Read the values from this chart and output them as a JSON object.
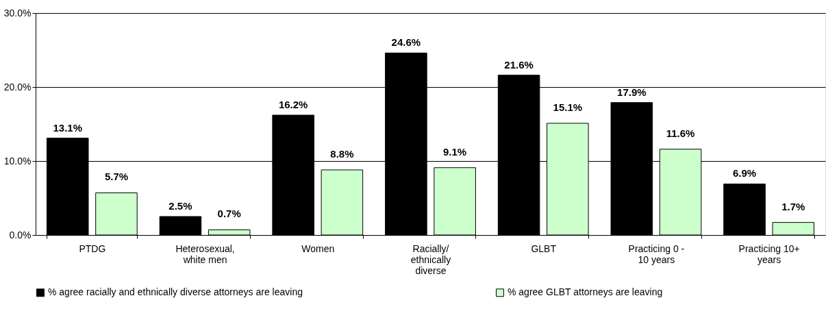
{
  "chart_data": {
    "type": "bar",
    "categories": [
      "PTDG",
      "Heterosexual, white men",
      "Women",
      "Racially/ ethnically diverse",
      "GLBT",
      "Practicing 0 - 10 years",
      "Practicing 10+ years"
    ],
    "series": [
      {
        "name": "% agree racially and ethnically diverse attorneys are leaving",
        "color": "#000000",
        "values": [
          13.1,
          2.5,
          16.2,
          24.6,
          21.6,
          17.9,
          6.9
        ],
        "value_labels": [
          "13.1%",
          "2.5%",
          "16.2%",
          "24.6%",
          "21.6%",
          "17.9%",
          "6.9%"
        ]
      },
      {
        "name": "% agree GLBT attorneys are leaving",
        "color": "#ccffcc",
        "values": [
          5.7,
          0.7,
          8.8,
          9.1,
          15.1,
          11.6,
          1.7
        ],
        "value_labels": [
          "5.7%",
          "0.7%",
          "8.8%",
          "9.1%",
          "15.1%",
          "11.6%",
          "1.7%"
        ]
      }
    ],
    "ylim": [
      0,
      30
    ],
    "yticks": [
      {
        "value": 0,
        "label": "0.0%"
      },
      {
        "value": 10,
        "label": "10.0%"
      },
      {
        "value": 20,
        "label": "20.0%"
      },
      {
        "value": 30,
        "label": "30.0%"
      }
    ],
    "grid": "y",
    "legend": "bottom"
  }
}
